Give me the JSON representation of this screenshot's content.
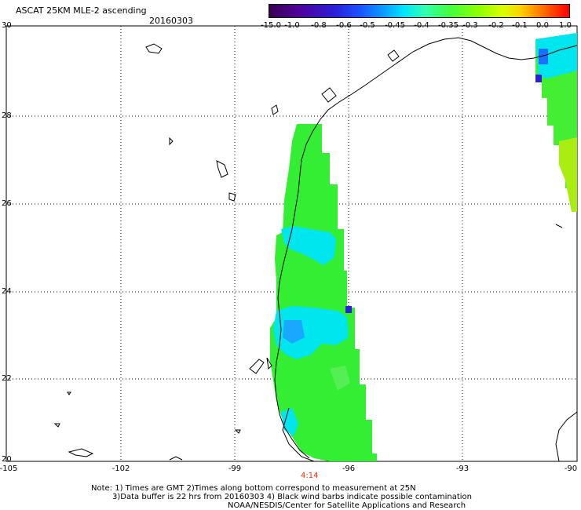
{
  "header": {
    "title": "ASCAT 25KM MLE-2 ascending",
    "date": "20160303"
  },
  "colorbar": {
    "tick_labels": [
      "-15.0",
      "-1.0",
      "-0.8",
      "-0.6",
      "-0.5",
      "-0.45",
      "-0.4",
      "-0.35",
      "-0.3",
      "-0.2",
      "-0.1",
      "0.0",
      "1.0"
    ]
  },
  "axes": {
    "lat_labels": [
      "30",
      "28",
      "26",
      "24",
      "22",
      "20"
    ],
    "lon_labels": [
      "-105",
      "-102",
      "-99",
      "-96",
      "-93",
      "-90"
    ],
    "time_label": "4:14"
  },
  "notes": {
    "line1": "Note: 1) Times are GMT 2)Times along bottom correspond to measurement at 25N",
    "line2": "3)Data buffer is 22 hrs from 20160303 4) Black wind barbs indicate possible contamination",
    "line3": "NOAA/NESDIS/Center for Satellite Applications and Research"
  },
  "colors": {
    "green": "#33ee33",
    "cyan": "#00e6ee",
    "blue": "#0a8cff",
    "yellow_green": "#aaee11"
  }
}
